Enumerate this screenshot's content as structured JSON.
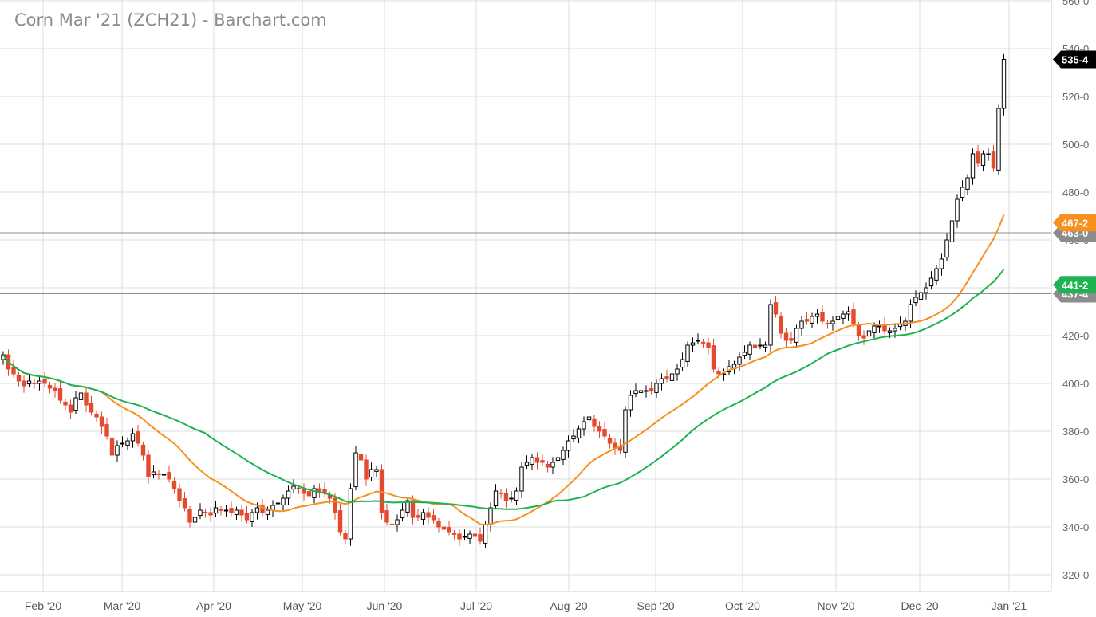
{
  "chart_data": {
    "type": "candlestick",
    "title": "Corn Mar '21 (ZCH21) - Barchart.com",
    "xlabel": "",
    "ylabel": "",
    "ylim": [
      313,
      560
    ],
    "grid": true,
    "y_ticks": [
      "320-0",
      "340-0",
      "360-0",
      "380-0",
      "400-0",
      "420-0",
      "440-0",
      "460-0",
      "480-0",
      "500-0",
      "520-0",
      "540-0",
      "560-0"
    ],
    "x_ticks": [
      "Feb '20",
      "Mar '20",
      "Apr '20",
      "May '20",
      "Jun '20",
      "Jul '20",
      "Aug '20",
      "Sep '20",
      "Oct '20",
      "Nov '20",
      "Dec '20",
      "Jan '21"
    ],
    "last_price_label": "535-4",
    "orange_ma_label": "467-2",
    "green_ma_label": "441-2",
    "horizontal_line_labels": [
      "463-0",
      "437-4"
    ],
    "horizontal_lines": [
      463.0,
      437.5
    ],
    "colors": {
      "up": "#ffffff",
      "up_stroke": "#000000",
      "down": "#e64a2e",
      "orange_ma": "#f7901e",
      "green_ma": "#1cb350",
      "grid": "#dcdcdc",
      "hline": "#8c8c8c"
    },
    "close": [
      412,
      406,
      404,
      401,
      399,
      401,
      400,
      401,
      400,
      398,
      397,
      393,
      391,
      388,
      394,
      396,
      391,
      388,
      386,
      382,
      378,
      370,
      374,
      375,
      376,
      379,
      375,
      370,
      361,
      363,
      362,
      362,
      360,
      356,
      351,
      348,
      342,
      344,
      347,
      346,
      345,
      348,
      347,
      347,
      346,
      347,
      345,
      343,
      346,
      348,
      346,
      347,
      349,
      350,
      352,
      355,
      357,
      356,
      354,
      353,
      356,
      355,
      354,
      352,
      346,
      338,
      335,
      356,
      371,
      368,
      360,
      364,
      364,
      346,
      342,
      341,
      343,
      347,
      351,
      344,
      344,
      346,
      344,
      343,
      340,
      339,
      338,
      337,
      335,
      336,
      337,
      336,
      334,
      341,
      348,
      355,
      354,
      351,
      352,
      355,
      365,
      367,
      369,
      367,
      367,
      365,
      367,
      369,
      372,
      376,
      378,
      381,
      384,
      386,
      382,
      380,
      378,
      375,
      373,
      372,
      389,
      395,
      397,
      397,
      397,
      397,
      400,
      402,
      402,
      404,
      406,
      410,
      416,
      417,
      418,
      417,
      415,
      406,
      404,
      404,
      407,
      408,
      411,
      413,
      416,
      415,
      416,
      416,
      433,
      429,
      421,
      418,
      418,
      423,
      426,
      426,
      428,
      429,
      426,
      425,
      426,
      428,
      429,
      430,
      425,
      420,
      419,
      422,
      424,
      424,
      422,
      422,
      423,
      425,
      426,
      433,
      436,
      438,
      440,
      444,
      448,
      452,
      460,
      468,
      477,
      482,
      486,
      496,
      492,
      496,
      496,
      490,
      515,
      535.5
    ]
  }
}
